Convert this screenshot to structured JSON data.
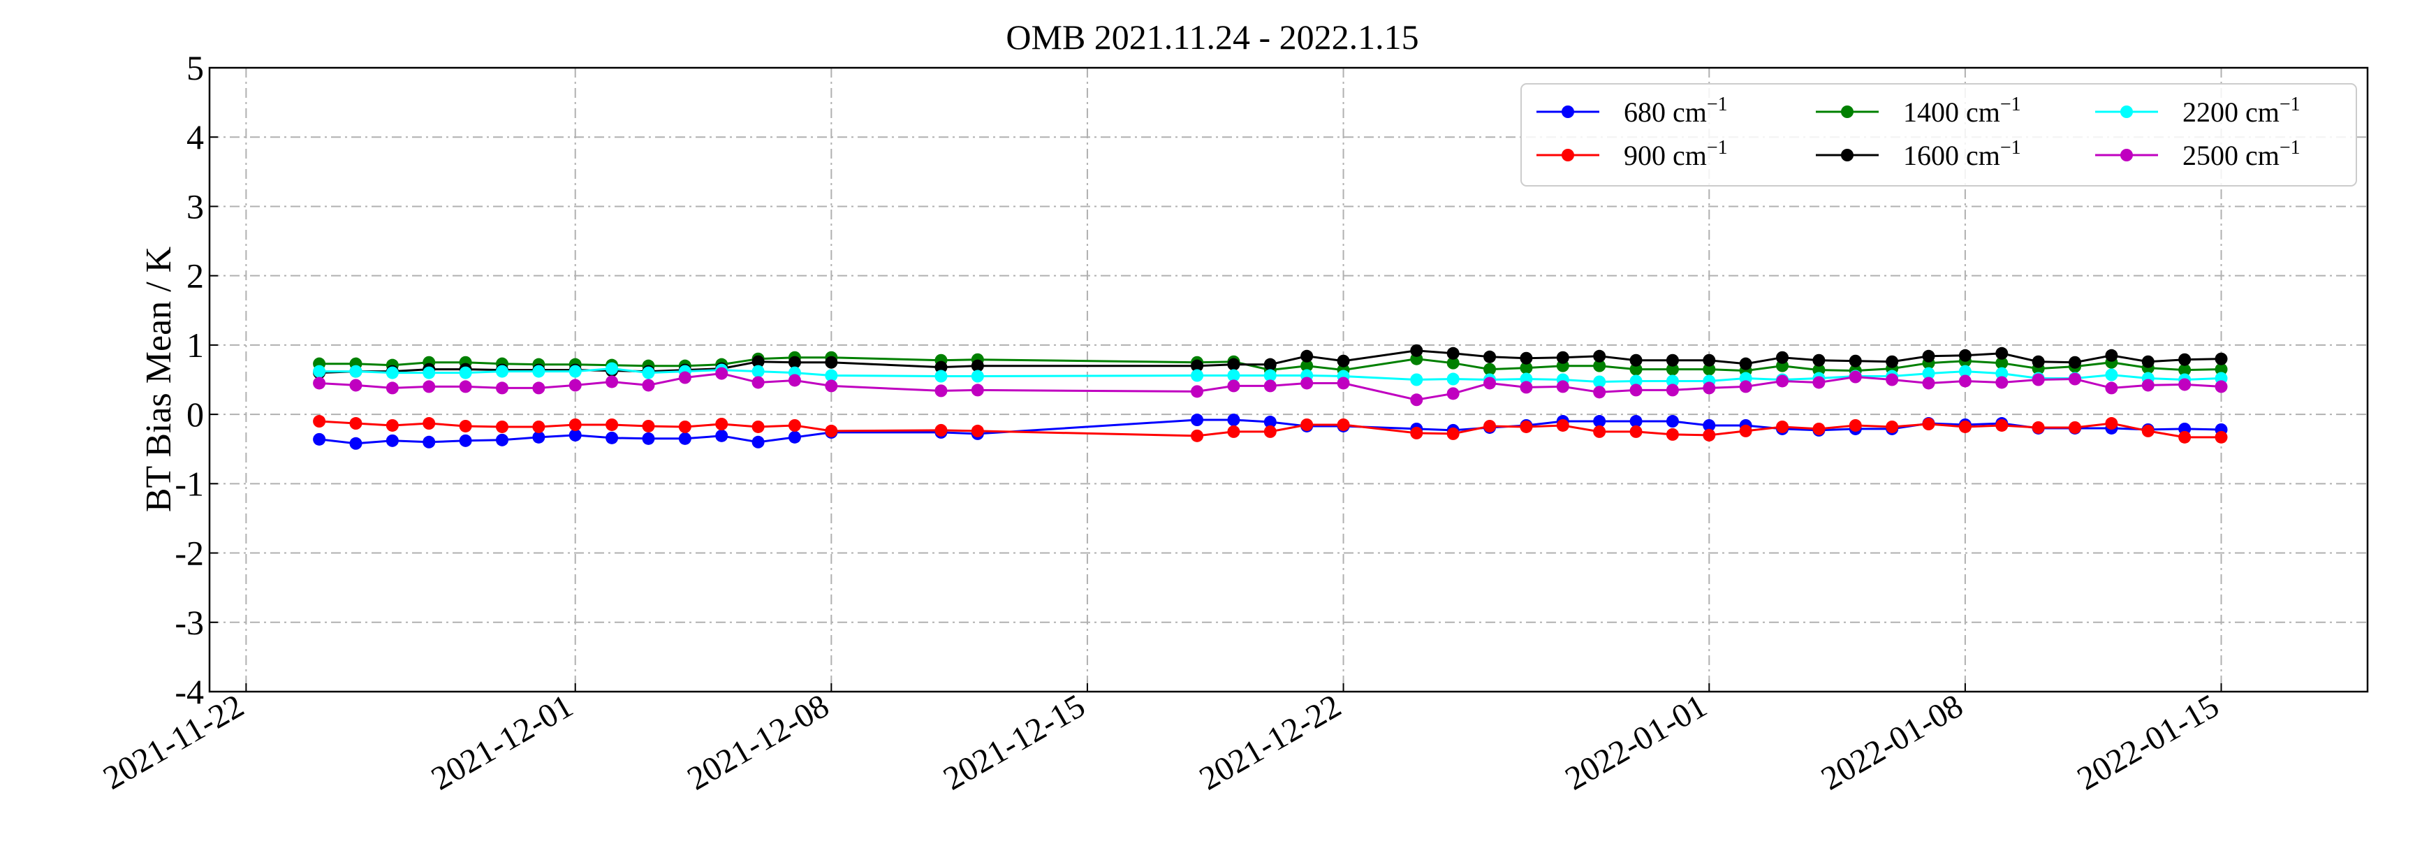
{
  "chart_data": {
    "type": "line",
    "title": "OMB 2021.11.24 - 2022.1.15",
    "ylabel": "BT Bias Mean / K",
    "xlabel": "",
    "xlim": [
      "2021-11-21",
      "2022-01-19"
    ],
    "ylim": [
      -4,
      5
    ],
    "yticks": [
      -4,
      -3,
      -2,
      -1,
      0,
      1,
      2,
      3,
      4,
      5
    ],
    "xticks": [
      "2021-11-22",
      "2021-12-01",
      "2021-12-08",
      "2021-12-15",
      "2021-12-22",
      "2022-01-01",
      "2022-01-08",
      "2022-01-15"
    ],
    "grid": true,
    "legend_position": "top-right",
    "legend_unit": "cm",
    "legend_exponent": "−1",
    "x": [
      "2021-11-24",
      "2021-11-25",
      "2021-11-26",
      "2021-11-27",
      "2021-11-28",
      "2021-11-29",
      "2021-11-30",
      "2021-12-01",
      "2021-12-02",
      "2021-12-03",
      "2021-12-04",
      "2021-12-05",
      "2021-12-06",
      "2021-12-07",
      "2021-12-08",
      "2021-12-11",
      "2021-12-12",
      "2021-12-18",
      "2021-12-19",
      "2021-12-20",
      "2021-12-21",
      "2021-12-22",
      "2021-12-24",
      "2021-12-25",
      "2021-12-26",
      "2021-12-27",
      "2021-12-28",
      "2021-12-29",
      "2021-12-30",
      "2021-12-31",
      "2022-01-01",
      "2022-01-02",
      "2022-01-03",
      "2022-01-04",
      "2022-01-05",
      "2022-01-06",
      "2022-01-07",
      "2022-01-08",
      "2022-01-09",
      "2022-01-10",
      "2022-01-11",
      "2022-01-12",
      "2022-01-13",
      "2022-01-14",
      "2022-01-15"
    ],
    "series": [
      {
        "name": "680",
        "color": "#0000ff",
        "values": [
          -0.36,
          -0.42,
          -0.38,
          -0.4,
          -0.38,
          -0.37,
          -0.33,
          -0.3,
          -0.34,
          -0.35,
          -0.35,
          -0.31,
          -0.4,
          -0.33,
          -0.26,
          -0.26,
          -0.28,
          -0.08,
          -0.08,
          -0.11,
          -0.17,
          -0.17,
          -0.21,
          -0.23,
          -0.19,
          -0.16,
          -0.1,
          -0.1,
          -0.1,
          -0.1,
          -0.16,
          -0.16,
          -0.21,
          -0.23,
          -0.21,
          -0.21,
          -0.13,
          -0.15,
          -0.13,
          -0.2,
          -0.2,
          -0.2,
          -0.22,
          -0.21,
          -0.22
        ]
      },
      {
        "name": "900",
        "color": "#ff0000",
        "values": [
          -0.1,
          -0.13,
          -0.16,
          -0.13,
          -0.17,
          -0.18,
          -0.18,
          -0.15,
          -0.15,
          -0.17,
          -0.18,
          -0.14,
          -0.18,
          -0.16,
          -0.24,
          -0.23,
          -0.24,
          -0.31,
          -0.25,
          -0.25,
          -0.15,
          -0.15,
          -0.27,
          -0.28,
          -0.17,
          -0.18,
          -0.16,
          -0.25,
          -0.25,
          -0.29,
          -0.3,
          -0.24,
          -0.18,
          -0.21,
          -0.16,
          -0.18,
          -0.14,
          -0.18,
          -0.16,
          -0.19,
          -0.19,
          -0.13,
          -0.24,
          -0.33,
          -0.33
        ]
      },
      {
        "name": "1400",
        "color": "#008000",
        "values": [
          0.73,
          0.73,
          0.71,
          0.75,
          0.75,
          0.73,
          0.72,
          0.72,
          0.71,
          0.7,
          0.7,
          0.72,
          0.8,
          0.82,
          0.82,
          0.78,
          0.79,
          0.75,
          0.76,
          0.64,
          0.7,
          0.64,
          0.8,
          0.74,
          0.65,
          0.67,
          0.7,
          0.7,
          0.65,
          0.65,
          0.65,
          0.63,
          0.7,
          0.64,
          0.63,
          0.66,
          0.74,
          0.77,
          0.74,
          0.66,
          0.69,
          0.75,
          0.67,
          0.64,
          0.65
        ]
      },
      {
        "name": "1600",
        "color": "#000000",
        "values": [
          0.6,
          0.62,
          0.62,
          0.65,
          0.65,
          0.64,
          0.64,
          0.64,
          0.63,
          0.62,
          0.64,
          0.66,
          0.76,
          0.75,
          0.75,
          0.68,
          0.7,
          0.7,
          0.72,
          0.72,
          0.84,
          0.77,
          0.92,
          0.88,
          0.83,
          0.81,
          0.82,
          0.84,
          0.78,
          0.78,
          0.78,
          0.73,
          0.82,
          0.78,
          0.77,
          0.76,
          0.84,
          0.85,
          0.88,
          0.76,
          0.75,
          0.85,
          0.76,
          0.79,
          0.8
        ]
      },
      {
        "name": "2200",
        "color": "#00ffff",
        "values": [
          0.62,
          0.62,
          0.6,
          0.6,
          0.6,
          0.62,
          0.62,
          0.62,
          0.66,
          0.6,
          0.62,
          0.64,
          0.62,
          0.6,
          0.56,
          0.55,
          0.55,
          0.56,
          0.56,
          0.56,
          0.56,
          0.55,
          0.5,
          0.51,
          0.5,
          0.51,
          0.5,
          0.47,
          0.48,
          0.48,
          0.48,
          0.52,
          0.5,
          0.52,
          0.55,
          0.55,
          0.59,
          0.62,
          0.59,
          0.52,
          0.52,
          0.57,
          0.52,
          0.5,
          0.52
        ]
      },
      {
        "name": "2500",
        "color": "#c000c0",
        "values": [
          0.45,
          0.42,
          0.38,
          0.4,
          0.4,
          0.38,
          0.38,
          0.42,
          0.47,
          0.42,
          0.53,
          0.59,
          0.46,
          0.49,
          0.41,
          0.34,
          0.35,
          0.33,
          0.41,
          0.41,
          0.45,
          0.45,
          0.21,
          0.3,
          0.45,
          0.39,
          0.4,
          0.32,
          0.35,
          0.35,
          0.38,
          0.4,
          0.48,
          0.46,
          0.54,
          0.5,
          0.45,
          0.48,
          0.46,
          0.5,
          0.51,
          0.38,
          0.42,
          0.43,
          0.4
        ]
      }
    ]
  }
}
